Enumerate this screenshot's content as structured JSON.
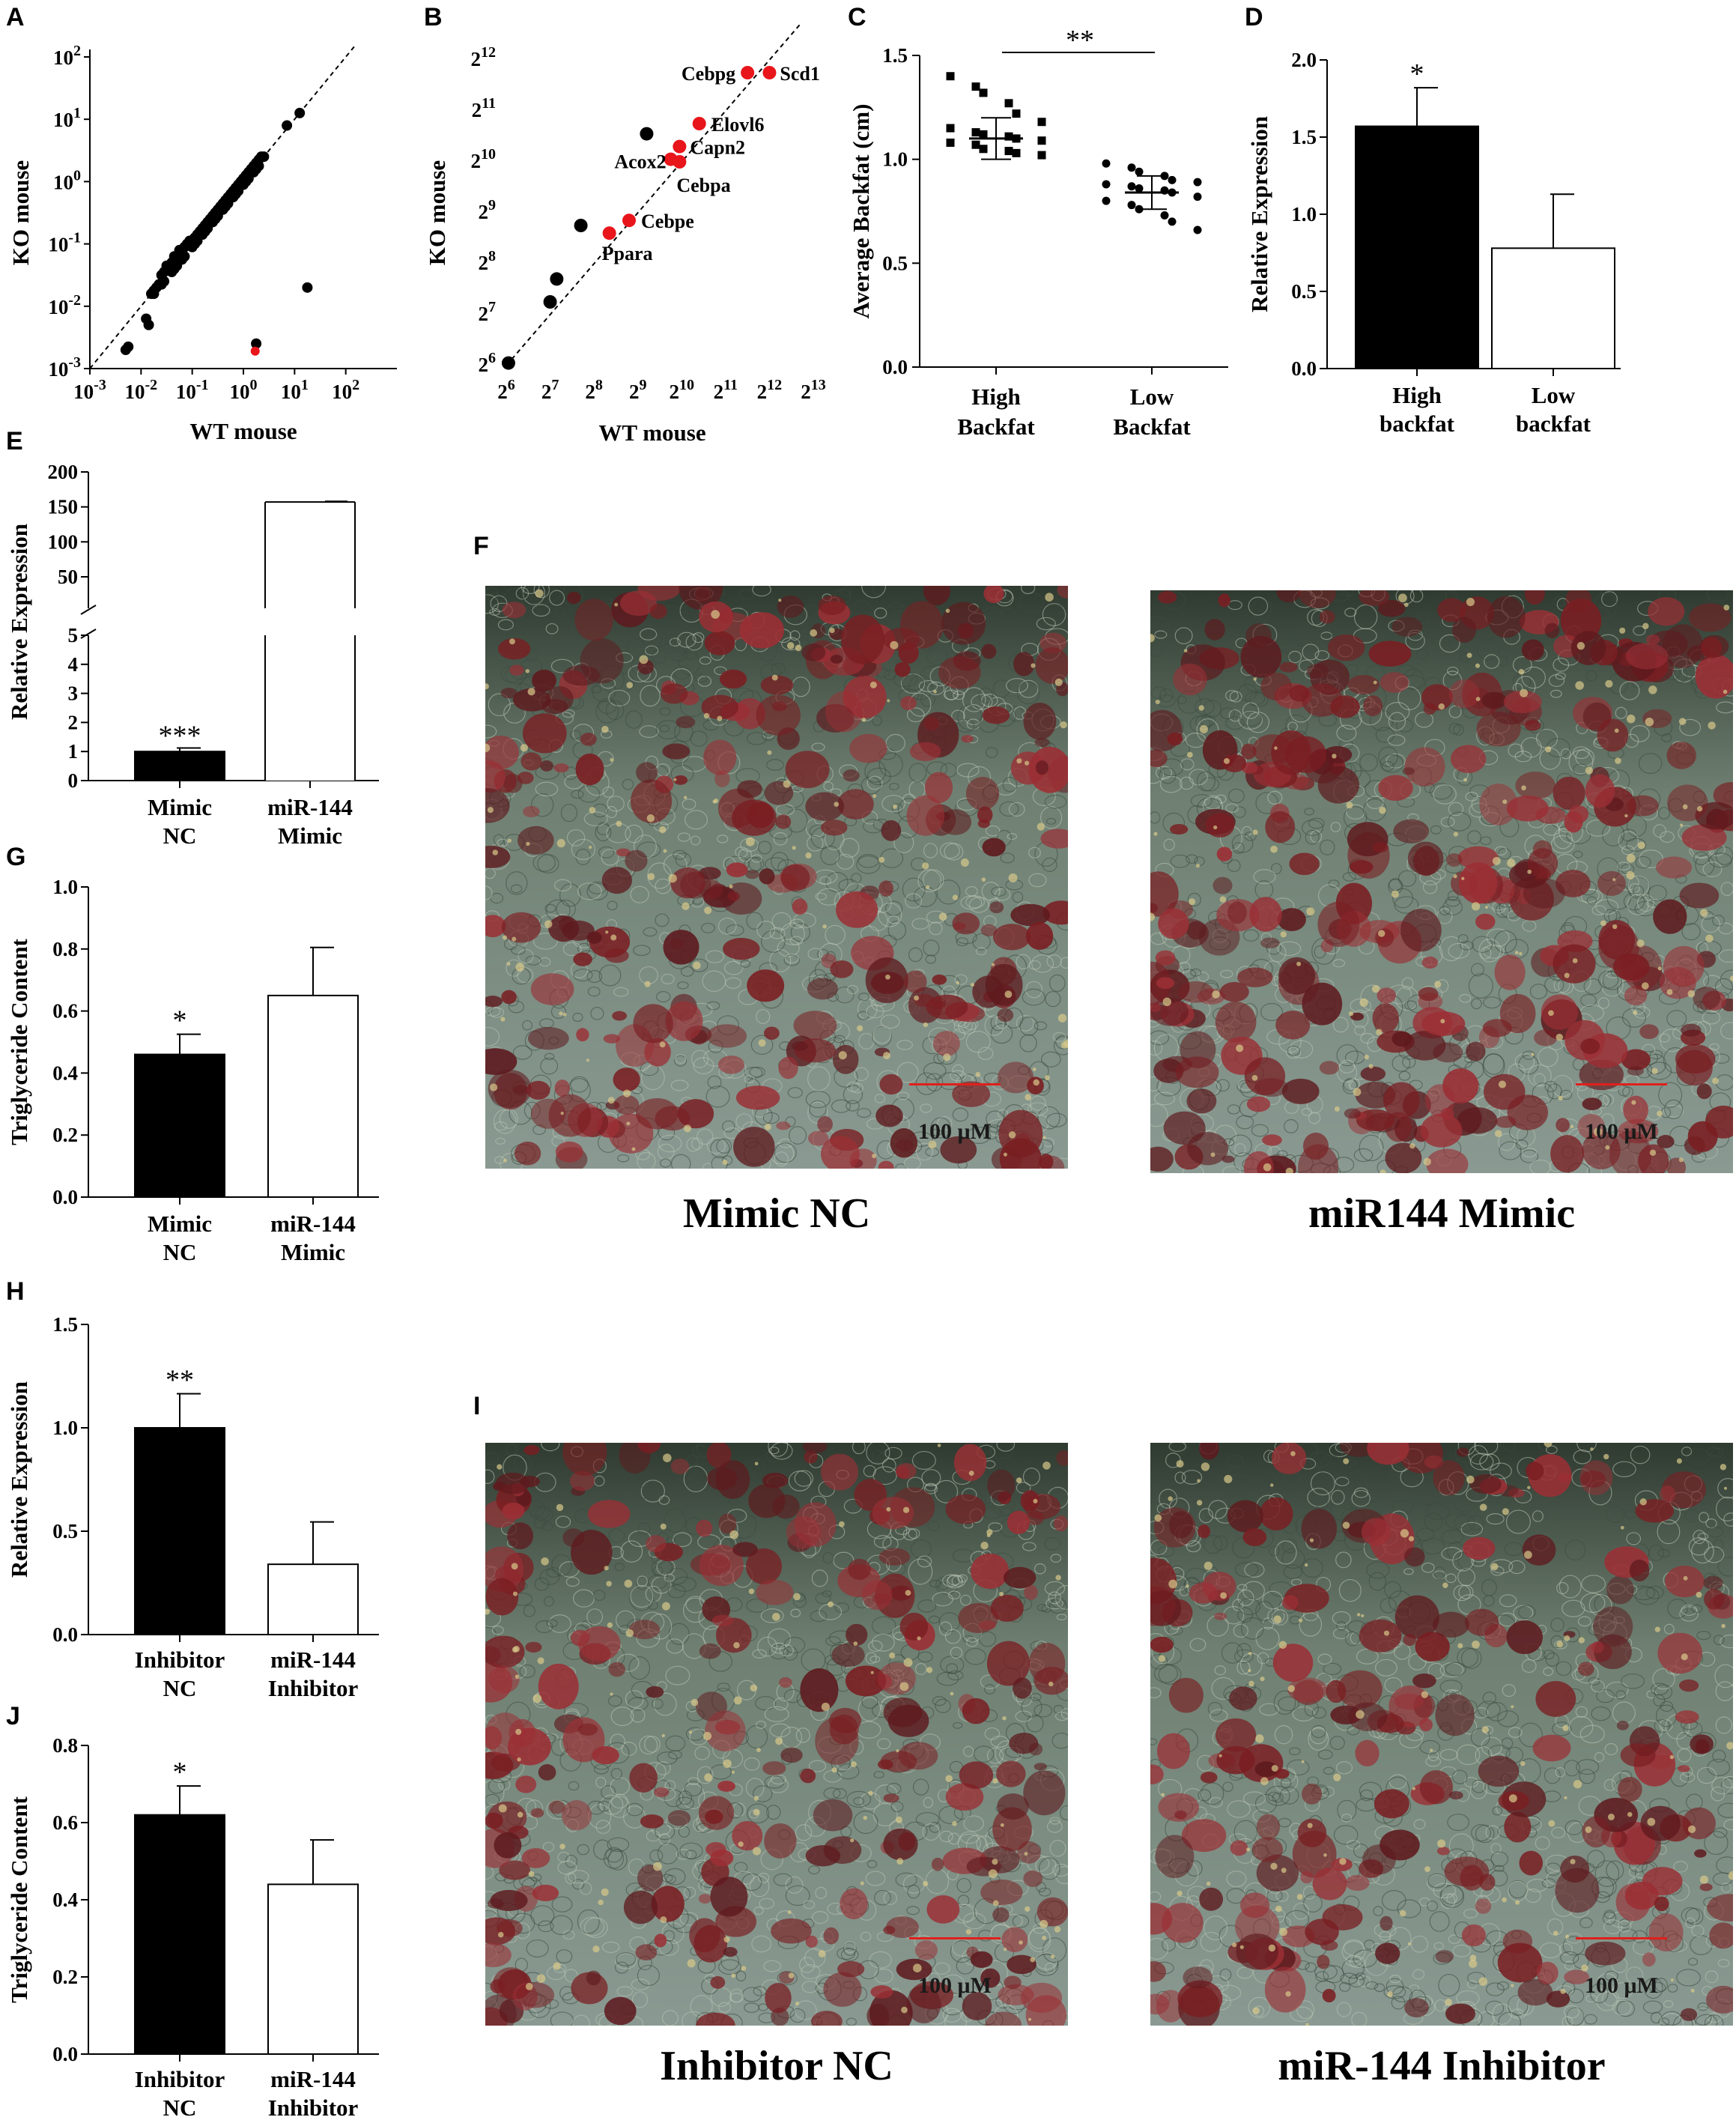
{
  "panels": {
    "A": {
      "letter": "A",
      "chart_data": {
        "type": "scatter",
        "scale": "log10",
        "xlabel": "WT mouse",
        "ylabel": "KO mouse",
        "xticks": [
          "10",
          "10",
          "10",
          "10",
          "10",
          "10"
        ],
        "xtick_exp": [
          "-3",
          "-2",
          "-1",
          "0",
          "1",
          "2"
        ],
        "yticks": [
          "10",
          "10",
          "10",
          "10",
          "10",
          "10"
        ],
        "ytick_exp": [
          "-3",
          "-2",
          "-1",
          "0",
          "1",
          "2"
        ],
        "xlim": [
          -3,
          3
        ],
        "ylim": [
          -3,
          2
        ],
        "diagonal": true,
        "black_points_log": [
          [
            -2.3,
            -2.7
          ],
          [
            -2.25,
            -2.65
          ],
          [
            -1.9,
            -2.2
          ],
          [
            -1.85,
            -2.3
          ],
          [
            -1.8,
            -1.8
          ],
          [
            -1.75,
            -1.75
          ],
          [
            -1.7,
            -1.7
          ],
          [
            -1.65,
            -1.65
          ],
          [
            -1.6,
            -1.5
          ],
          [
            -1.55,
            -1.45
          ],
          [
            -1.5,
            -1.35
          ],
          [
            -1.45,
            -1.4
          ],
          [
            -1.4,
            -1.3
          ],
          [
            -1.35,
            -1.2
          ],
          [
            -1.3,
            -1.25
          ],
          [
            -1.25,
            -1.1
          ],
          [
            -1.2,
            -1.15
          ],
          [
            -1.15,
            -1.05
          ],
          [
            -1.1,
            -1.0
          ],
          [
            -1.05,
            -0.95
          ],
          [
            -1.0,
            -1.0
          ],
          [
            -0.95,
            -0.9
          ],
          [
            -0.9,
            -0.85
          ],
          [
            -0.85,
            -0.8
          ],
          [
            -0.8,
            -0.75
          ],
          [
            -0.75,
            -0.7
          ],
          [
            -0.7,
            -0.65
          ],
          [
            -0.65,
            -0.6
          ],
          [
            -0.6,
            -0.55
          ],
          [
            -0.55,
            -0.5
          ],
          [
            -0.5,
            -0.45
          ],
          [
            -0.45,
            -0.4
          ],
          [
            -0.4,
            -0.35
          ],
          [
            -0.35,
            -0.3
          ],
          [
            -0.3,
            -0.25
          ],
          [
            -0.25,
            -0.2
          ],
          [
            -0.2,
            -0.15
          ],
          [
            -0.15,
            -0.1
          ],
          [
            -0.1,
            -0.05
          ],
          [
            -0.05,
            0.0
          ],
          [
            0.0,
            0.05
          ],
          [
            0.05,
            0.1
          ],
          [
            0.1,
            0.15
          ],
          [
            0.15,
            0.2
          ],
          [
            0.2,
            0.25
          ],
          [
            0.25,
            0.3
          ],
          [
            0.3,
            0.35
          ],
          [
            0.35,
            0.4
          ],
          [
            -1.6,
            -1.65
          ],
          [
            -1.4,
            -1.45
          ],
          [
            -1.2,
            -1.25
          ],
          [
            -0.9,
            -0.95
          ],
          [
            -0.7,
            -0.75
          ],
          [
            -0.5,
            -0.55
          ],
          [
            -0.3,
            -0.35
          ],
          [
            -0.1,
            -0.15
          ],
          [
            0.1,
            0.05
          ],
          [
            0.3,
            0.25
          ],
          [
            -1.3,
            -1.35
          ],
          [
            -1.0,
            -1.05
          ],
          [
            -0.8,
            -0.85
          ],
          [
            -0.6,
            -0.65
          ],
          [
            -0.4,
            -0.45
          ],
          [
            -0.2,
            -0.25
          ],
          [
            0.0,
            -0.05
          ],
          [
            0.2,
            0.15
          ],
          [
            -1.75,
            -1.8
          ],
          [
            -1.55,
            -1.6
          ],
          [
            -1.35,
            -1.4
          ],
          [
            -1.15,
            -1.2
          ],
          [
            -0.95,
            -1.0
          ],
          [
            -0.75,
            -0.8
          ],
          [
            -0.55,
            -0.6
          ],
          [
            -0.35,
            -0.4
          ],
          [
            -0.15,
            -0.2
          ],
          [
            0.05,
            0.0
          ],
          [
            0.25,
            0.2
          ],
          [
            0.4,
            0.4
          ],
          [
            0.85,
            0.9
          ],
          [
            1.1,
            1.1
          ],
          [
            1.25,
            -1.7
          ],
          [
            0.25,
            -2.6
          ]
        ],
        "red_points_log": [
          [
            0.23,
            -2.72
          ]
        ]
      }
    },
    "B": {
      "letter": "B",
      "chart_data": {
        "type": "scatter",
        "scale": "log2",
        "xlabel": "WT mouse",
        "ylabel": "KO mouse",
        "xticks": [
          "2",
          "2",
          "2",
          "2",
          "2",
          "2",
          "2",
          "2"
        ],
        "xtick_exp": [
          "6",
          "7",
          "8",
          "9",
          "10",
          "11",
          "12",
          "13"
        ],
        "yticks": [
          "2",
          "2",
          "2",
          "2",
          "2",
          "2",
          "2"
        ],
        "ytick_exp": [
          "6",
          "7",
          "8",
          "9",
          "10",
          "11",
          "12"
        ],
        "xlim": [
          6,
          13
        ],
        "ylim": [
          6,
          12
        ],
        "diagonal": true,
        "black_points": [
          [
            6.05,
            6.05
          ],
          [
            7.0,
            7.25
          ],
          [
            7.15,
            7.7
          ],
          [
            7.7,
            8.75
          ],
          [
            9.2,
            10.55
          ]
        ],
        "red_points": [
          {
            "name": "Cebpg",
            "x": 11.5,
            "y": 11.75
          },
          {
            "name": "Scd1",
            "x": 12.0,
            "y": 11.75
          },
          {
            "name": "Elovl6",
            "x": 10.4,
            "y": 10.75
          },
          {
            "name": "Capn2",
            "x": 9.95,
            "y": 10.3
          },
          {
            "name": "Acox2",
            "x": 9.75,
            "y": 10.05
          },
          {
            "name": "Cebpa",
            "x": 9.95,
            "y": 10.0
          },
          {
            "name": "Cebpe",
            "x": 8.8,
            "y": 8.85
          },
          {
            "name": "Ppara",
            "x": 8.35,
            "y": 8.6
          }
        ]
      }
    },
    "C": {
      "letter": "C",
      "chart_data": {
        "type": "scatter",
        "ylabel": "Average Backfat (cm)",
        "categories": [
          "High\nBackfat",
          "Low\nBackfat"
        ],
        "cat_line1": [
          "High",
          "Low"
        ],
        "cat_line2": [
          "Backfat",
          "Backfat"
        ],
        "yticks": [
          "0.0",
          "0.5",
          "1.0",
          "1.5"
        ],
        "ylim": [
          0,
          1.5
        ],
        "significance": "**",
        "series": [
          {
            "name": "High Backfat",
            "marker": "square",
            "mean": 1.1,
            "sd": 0.1,
            "values": [
              1.4,
              1.35,
              1.32,
              1.27,
              1.22,
              1.18,
              1.15,
              1.13,
              1.12,
              1.11,
              1.1,
              1.09,
              1.08,
              1.07,
              1.05,
              1.04,
              1.03,
              1.02
            ]
          },
          {
            "name": "Low Backfat",
            "marker": "circle",
            "mean": 0.84,
            "sd": 0.08,
            "values": [
              0.98,
              0.96,
              0.94,
              0.92,
              0.9,
              0.89,
              0.88,
              0.87,
              0.86,
              0.85,
              0.84,
              0.82,
              0.8,
              0.78,
              0.76,
              0.73,
              0.7,
              0.66
            ]
          }
        ]
      }
    },
    "D": {
      "letter": "D",
      "chart_data": {
        "type": "bar",
        "ylabel": "Relative Expression",
        "cat_line1": [
          "High",
          "Low"
        ],
        "cat_line2": [
          "backfat",
          "backfat"
        ],
        "yticks": [
          "0.0",
          "0.5",
          "1.0",
          "1.5",
          "2.0"
        ],
        "ylim": [
          0,
          2.0
        ],
        "values": [
          1.57,
          0.78
        ],
        "errors": [
          0.25,
          0.35
        ],
        "fills": [
          "#000000",
          "#ffffff"
        ],
        "significance": [
          "*",
          ""
        ]
      }
    },
    "E": {
      "letter": "E",
      "chart_data": {
        "type": "bar",
        "ylabel": "Relative Expression",
        "cat_line1": [
          "Mimic",
          "miR-144"
        ],
        "cat_line2": [
          "NC",
          "Mimic"
        ],
        "yticks_lower": [
          "0",
          "1",
          "2",
          "3",
          "4",
          "5"
        ],
        "yticks_upper": [
          "50",
          "100",
          "150",
          "200"
        ],
        "broken_axis": {
          "lower": [
            0,
            5
          ],
          "upper": [
            5,
            200
          ]
        },
        "values": [
          1.0,
          157
        ],
        "errors": [
          0.12,
          1.0
        ],
        "fills": [
          "#000000",
          "#ffffff"
        ],
        "significance": [
          "***",
          ""
        ]
      }
    },
    "G": {
      "letter": "G",
      "chart_data": {
        "type": "bar",
        "ylabel": "Triglyceride Content",
        "cat_line1": [
          "Mimic",
          "miR-144"
        ],
        "cat_line2": [
          "NC",
          "Mimic"
        ],
        "yticks": [
          "0.0",
          "0.2",
          "0.4",
          "0.6",
          "0.8",
          "1.0"
        ],
        "ylim": [
          0,
          1.0
        ],
        "values": [
          0.46,
          0.65
        ],
        "errors": [
          0.065,
          0.155
        ],
        "fills": [
          "#000000",
          "#ffffff"
        ],
        "significance": [
          "*",
          ""
        ]
      }
    },
    "H": {
      "letter": "H",
      "chart_data": {
        "type": "bar",
        "ylabel": "Relative Expression",
        "cat_line1": [
          "Inhibitor",
          "miR-144"
        ],
        "cat_line2": [
          "NC",
          "Inhibitor"
        ],
        "yticks": [
          "0.0",
          "0.5",
          "1.0",
          "1.5"
        ],
        "ylim": [
          0,
          1.5
        ],
        "values": [
          1.0,
          0.34
        ],
        "errors": [
          0.165,
          0.205
        ],
        "fills": [
          "#000000",
          "#ffffff"
        ],
        "significance": [
          "**",
          ""
        ]
      }
    },
    "J": {
      "letter": "J",
      "chart_data": {
        "type": "bar",
        "ylabel": "Triglyceride Content",
        "cat_line1": [
          "Inhibitor",
          "miR-144"
        ],
        "cat_line2": [
          "NC",
          "Inhibitor"
        ],
        "yticks": [
          "0.0",
          "0.2",
          "0.4",
          "0.6",
          "0.8"
        ],
        "ylim": [
          0,
          0.8
        ],
        "values": [
          0.62,
          0.44
        ],
        "errors": [
          0.075,
          0.115
        ],
        "fills": [
          "#000000",
          "#ffffff"
        ],
        "significance": [
          "*",
          ""
        ]
      }
    },
    "F": {
      "letter": "F",
      "images": [
        {
          "caption": "Mimic NC",
          "scale": "100 μM"
        },
        {
          "caption": "miR144 Mimic",
          "scale": "100 μM"
        }
      ]
    },
    "I": {
      "letter": "I",
      "images": [
        {
          "caption": "Inhibitor NC",
          "scale": "100 μM"
        },
        {
          "caption": "miR-144 Inhibitor",
          "scale": "100 μM"
        }
      ]
    }
  }
}
